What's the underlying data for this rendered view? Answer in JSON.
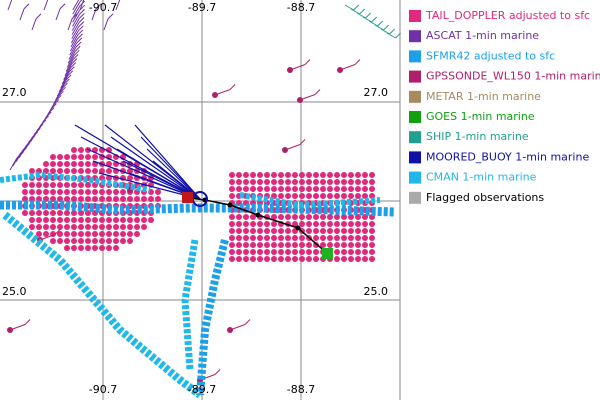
{
  "map": {
    "lon_labels_top": [
      "-90.7",
      "-89.7",
      "-88.7"
    ],
    "lon_labels_bottom": [
      "-90.7",
      "-89.7",
      "-88.7"
    ],
    "lat_labels_left": [
      "27.0",
      "25.0"
    ],
    "lat_labels_right": [
      "27.0",
      "25.0"
    ]
  },
  "legend": [
    {
      "label": "TAIL_DOPPLER adjusted to sfc",
      "color": "#e0287c",
      "text_color": "#e0287c"
    },
    {
      "label": "ASCAT 1-min marine",
      "color": "#7030a8",
      "text_color": "#7030a8"
    },
    {
      "label": "SFMR42 adjusted to sfc",
      "color": "#1ea0e8",
      "text_color": "#1ea0e8"
    },
    {
      "label": "GPSSONDE_WL150 1-min marine",
      "color": "#b0206a",
      "text_color": "#b0206a"
    },
    {
      "label": "METAR 1-min marine",
      "color": "#a88a60",
      "text_color": "#a88a60"
    },
    {
      "label": "GOES 1-min marine",
      "color": "#10a010",
      "text_color": "#10a010"
    },
    {
      "label": "SHIP 1-min marine",
      "color": "#20a090",
      "text_color": "#20a090"
    },
    {
      "label": "MOORED_BUOY 1-min marine",
      "color": "#1010a8",
      "text_color": "#1010a8"
    },
    {
      "label": "CMAN 1-min marine",
      "color": "#20b8e8",
      "text_color": "#20b8e8"
    },
    {
      "label": "Flagged observations",
      "color": "#aaaaaa",
      "text_color": "#000000"
    }
  ]
}
